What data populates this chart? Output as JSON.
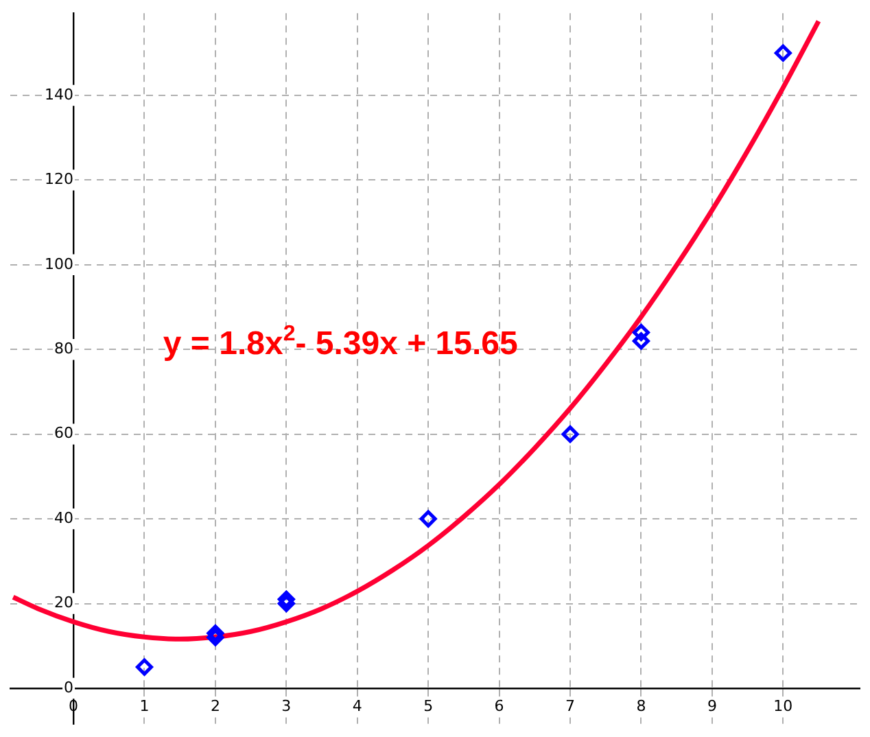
{
  "chart_data": {
    "type": "scatter",
    "xlim": [
      -0.89,
      11.08
    ],
    "ylim": [
      -8.4,
      159.4
    ],
    "xticks": [
      0,
      1,
      2,
      3,
      4,
      5,
      6,
      7,
      8,
      9,
      10
    ],
    "yticks": [
      0,
      20,
      40,
      60,
      80,
      100,
      120,
      140
    ],
    "grid": true,
    "annotations": [
      "y = 1.8x$^{2}$- 5.39x + 15.65"
    ],
    "series": [
      {
        "color": "#0000ff",
        "marker": "diamond",
        "x": [
          1,
          2,
          2,
          3,
          3,
          5,
          7,
          8,
          8,
          10
        ],
        "values": [
          5,
          13,
          12,
          21,
          20,
          40,
          60,
          84,
          82,
          150
        ]
      },
      {
        "type": "line",
        "color": "#ff0033",
        "marker": "none",
        "line_style": "solid",
        "x": [
          -0.85,
          -0.5,
          0,
          0.5,
          1,
          1.5,
          2,
          2.5,
          3,
          3.5,
          4,
          4.5,
          5,
          5.5,
          6,
          6.5,
          7,
          7.5,
          8,
          8.5,
          9,
          9.5,
          10,
          10.5
        ],
        "values": [
          21.5,
          18.8,
          15.7,
          13.4,
          12.1,
          11.6,
          12.1,
          13.4,
          15.7,
          18.8,
          22.9,
          27.9,
          33.7,
          40.5,
          48.1,
          56.7,
          66.1,
          76.5,
          87.7,
          99.9,
          112.9,
          126.9,
          141.8,
          157.5
        ]
      }
    ]
  }
}
